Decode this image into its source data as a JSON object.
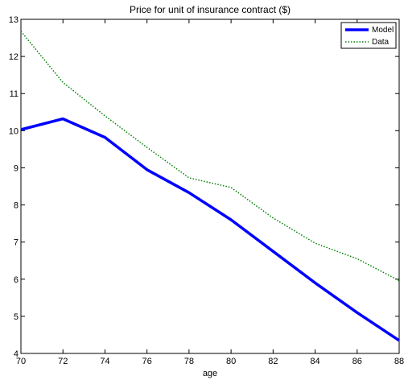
{
  "chart_data": {
    "type": "line",
    "title": "Price for unit of insurance contract ($)",
    "xlabel": "age",
    "ylabel": "",
    "xlim": [
      70,
      88
    ],
    "ylim": [
      4,
      13
    ],
    "xticks": [
      70,
      72,
      74,
      76,
      78,
      80,
      82,
      84,
      86,
      88
    ],
    "yticks": [
      4,
      5,
      6,
      7,
      8,
      9,
      10,
      11,
      12,
      13
    ],
    "grid": false,
    "legend_position": "top-right",
    "series": [
      {
        "name": "Model",
        "color": "#0000ff",
        "style": "solid",
        "x": [
          70,
          72,
          74,
          76,
          78,
          80,
          82,
          84,
          86,
          88
        ],
        "y": [
          10.03,
          10.32,
          9.82,
          8.95,
          8.33,
          7.6,
          6.75,
          5.9,
          5.1,
          4.35
        ]
      },
      {
        "name": "Data",
        "color": "#008000",
        "style": "dotted",
        "x": [
          70,
          72,
          74,
          76,
          78,
          80,
          82,
          84,
          86,
          88
        ],
        "y": [
          12.68,
          11.3,
          10.4,
          9.55,
          8.73,
          8.47,
          7.65,
          6.97,
          6.55,
          5.96
        ]
      }
    ]
  }
}
